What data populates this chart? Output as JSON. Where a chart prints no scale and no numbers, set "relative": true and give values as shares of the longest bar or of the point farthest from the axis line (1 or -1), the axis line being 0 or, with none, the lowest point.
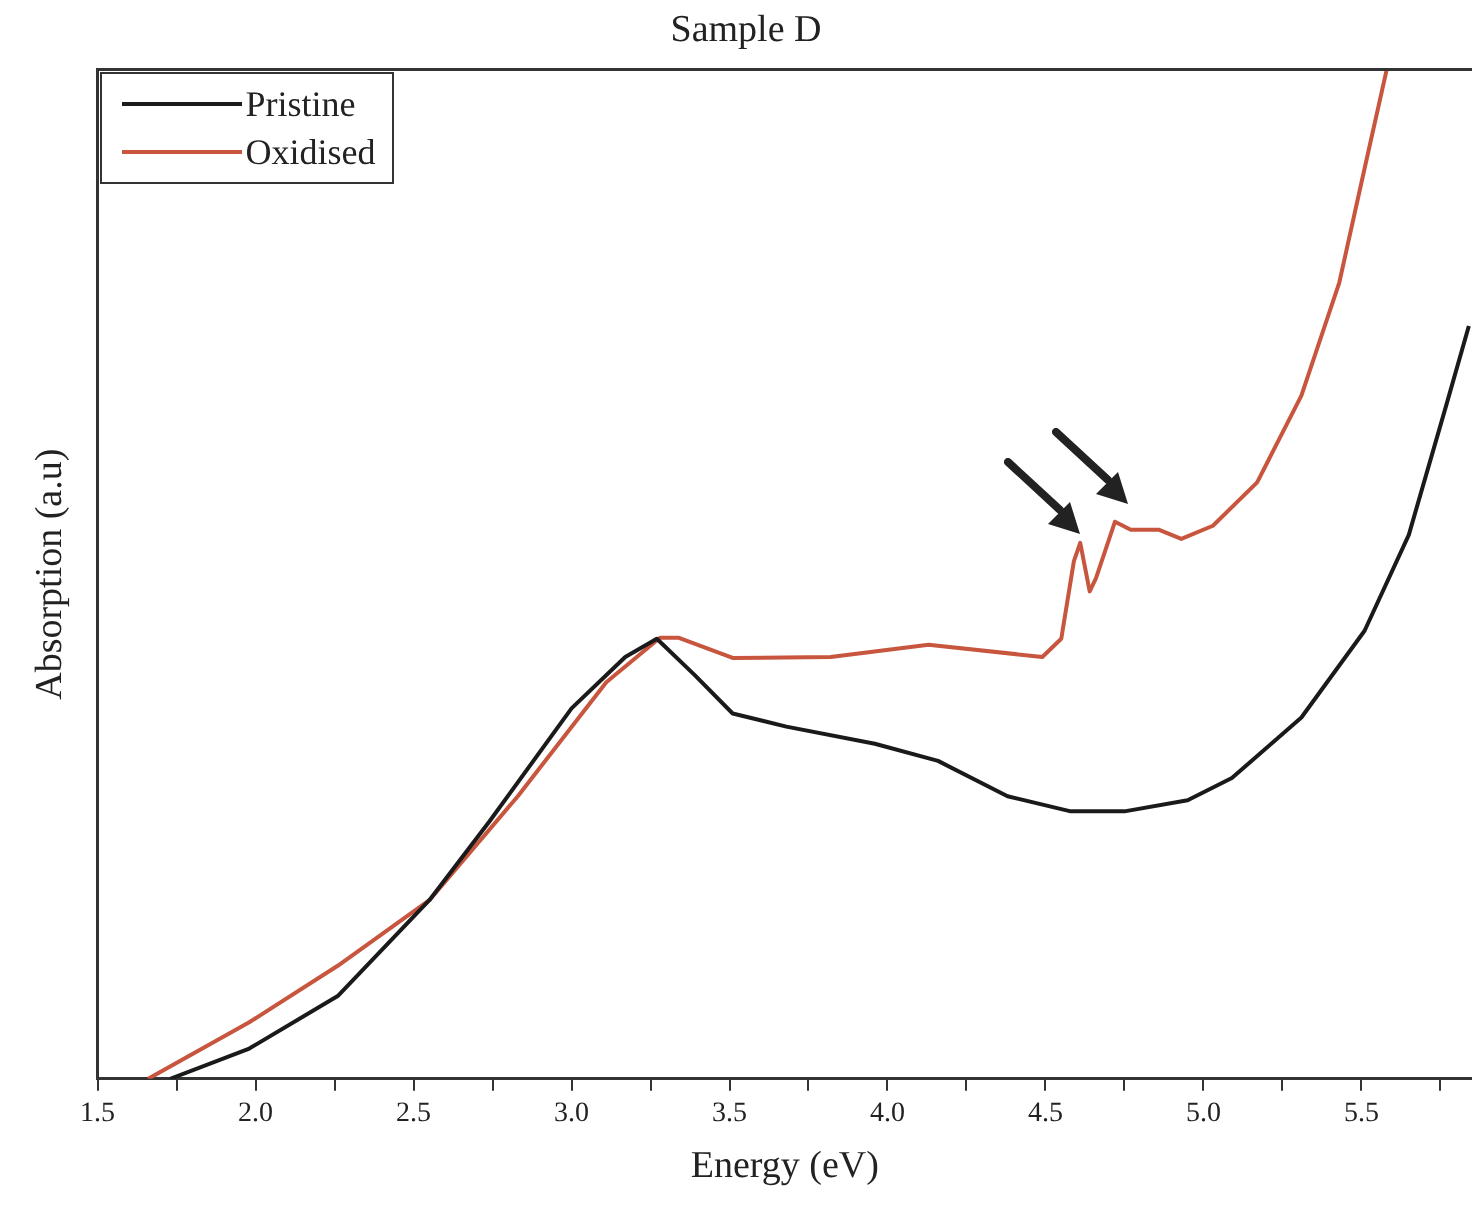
{
  "chart_data": {
    "type": "line",
    "title": "Sample D",
    "xlabel": "Energy (eV)",
    "ylabel": "Absorption (a.u)",
    "relative": true,
    "legend": "top left",
    "marker": "none",
    "line_style": "solid",
    "xlim": [
      1.5,
      5.85
    ],
    "xticks": [
      {
        "value": 1.5,
        "label": "1.5"
      },
      {
        "value": 1.75,
        "label": null
      },
      {
        "value": 2,
        "label": "2.0"
      },
      {
        "value": 2.25,
        "label": null
      },
      {
        "value": 2.5,
        "label": "2.5"
      },
      {
        "value": 2.75,
        "label": null
      },
      {
        "value": 3,
        "label": "3.0"
      },
      {
        "value": 3.25,
        "label": null
      },
      {
        "value": 3.5,
        "label": "3.5"
      },
      {
        "value": 3.75,
        "label": null
      },
      {
        "value": 4,
        "label": "4.0"
      },
      {
        "value": 4.25,
        "label": null
      },
      {
        "value": 4.5,
        "label": "4.5"
      },
      {
        "value": 4.75,
        "label": null
      },
      {
        "value": 5,
        "label": "5.0"
      },
      {
        "value": 5.25,
        "label": null
      },
      {
        "value": 5.5,
        "label": "5.5"
      },
      {
        "value": 5.75,
        "label": null
      }
    ],
    "series": [
      {
        "name": "Pristine",
        "color": "#1a1a1a",
        "x": [
          1.73,
          1.98,
          2.26,
          2.55,
          2.74,
          3.0,
          3.17,
          3.27,
          3.39,
          3.51,
          3.68,
          3.96,
          4.16,
          4.38,
          4.58,
          4.75,
          4.95,
          5.09,
          5.31,
          5.51,
          5.65,
          5.77,
          5.84
        ],
        "values": [
          0,
          0.03,
          0.082,
          0.177,
          0.255,
          0.367,
          0.418,
          0.436,
          0.4,
          0.362,
          0.349,
          0.332,
          0.315,
          0.28,
          0.265,
          0.265,
          0.276,
          0.298,
          0.358,
          0.444,
          0.539,
          0.669,
          0.746
        ]
      },
      {
        "name": "Oxidised",
        "color": "#c8553d",
        "x": [
          1.66,
          1.98,
          2.26,
          2.55,
          2.83,
          3.11,
          3.28,
          3.34,
          3.51,
          3.82,
          4.13,
          4.49,
          4.55,
          4.59,
          4.61,
          4.64,
          4.66,
          4.72,
          4.77,
          4.86,
          4.93,
          5.03,
          5.17,
          5.31,
          5.43,
          5.51,
          5.58
        ],
        "values": [
          0,
          0.056,
          0.112,
          0.177,
          0.28,
          0.393,
          0.437,
          0.437,
          0.417,
          0.418,
          0.43,
          0.418,
          0.436,
          0.513,
          0.531,
          0.483,
          0.496,
          0.552,
          0.544,
          0.544,
          0.535,
          0.548,
          0.591,
          0.677,
          0.789,
          0.902,
          1
        ]
      }
    ]
  }
}
